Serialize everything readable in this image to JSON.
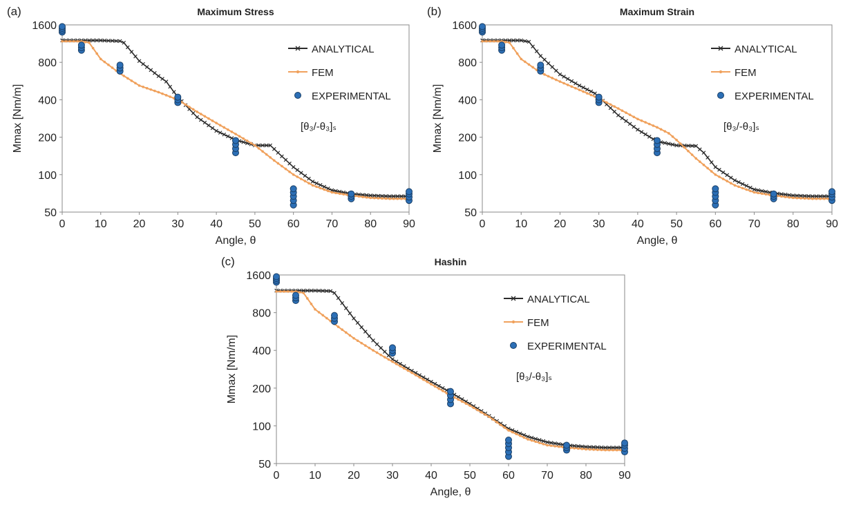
{
  "chart_data": [
    {
      "panel_label": "(a)",
      "type": "line",
      "title": "Maximum Stress",
      "xlabel": "Angle, θ",
      "ylabel": "Mmax [Nm/m]",
      "xlim": [
        0,
        90
      ],
      "xticks": [
        0,
        10,
        20,
        30,
        40,
        50,
        60,
        70,
        80,
        90
      ],
      "ylim": [
        50,
        1600
      ],
      "yscale": "log2",
      "yticks": [
        50,
        100,
        200,
        400,
        800,
        1600
      ],
      "grid": false,
      "legend_position": "top-right",
      "annotation": {
        "text": "[θ₃/-θ₃]ₛ"
      },
      "series": [
        {
          "name": "ANALYTICAL",
          "color": "#2b2b2b",
          "marker": "x",
          "points": [
            [
              0,
              1200
            ],
            [
              5,
              1200
            ],
            [
              10,
              1200
            ],
            [
              15,
              1185
            ],
            [
              16,
              1150
            ],
            [
              20,
              820
            ],
            [
              25,
              620
            ],
            [
              27,
              560
            ],
            [
              30,
              420
            ],
            [
              35,
              290
            ],
            [
              40,
              225
            ],
            [
              45,
              190
            ],
            [
              50,
              172
            ],
            [
              54,
              172
            ],
            [
              56,
              150
            ],
            [
              60,
              115
            ],
            [
              65,
              88
            ],
            [
              70,
              75
            ],
            [
              75,
              70
            ],
            [
              80,
              68
            ],
            [
              85,
              67
            ],
            [
              90,
              67
            ]
          ]
        },
        {
          "name": "FEM",
          "color": "#f0a15c",
          "marker": "dot",
          "points": [
            [
              0,
              1180
            ],
            [
              5,
              1180
            ],
            [
              7,
              1150
            ],
            [
              10,
              850
            ],
            [
              15,
              650
            ],
            [
              20,
              520
            ],
            [
              25,
              460
            ],
            [
              30,
              400
            ],
            [
              35,
              320
            ],
            [
              40,
              260
            ],
            [
              45,
              212
            ],
            [
              50,
              172
            ],
            [
              55,
              130
            ],
            [
              60,
              100
            ],
            [
              65,
              82
            ],
            [
              70,
              72
            ],
            [
              75,
              68
            ],
            [
              80,
              65
            ],
            [
              85,
              64
            ],
            [
              90,
              64
            ]
          ]
        },
        {
          "name": "EXPERIMENTAL",
          "color": "#2c6fb6",
          "marker": "circle",
          "mode": "scatter",
          "points": [
            [
              0,
              1400
            ],
            [
              0,
              1450
            ],
            [
              0,
              1500
            ],
            [
              0,
              1550
            ],
            [
              5,
              1000
            ],
            [
              5,
              1050
            ],
            [
              5,
              1100
            ],
            [
              15,
              680
            ],
            [
              15,
              720
            ],
            [
              15,
              760
            ],
            [
              30,
              380
            ],
            [
              30,
              400
            ],
            [
              30,
              420
            ],
            [
              45,
              150
            ],
            [
              45,
              162
            ],
            [
              45,
              175
            ],
            [
              45,
              188
            ],
            [
              60,
              57
            ],
            [
              60,
              62
            ],
            [
              60,
              67
            ],
            [
              60,
              72
            ],
            [
              60,
              77
            ],
            [
              75,
              64
            ],
            [
              75,
              67
            ],
            [
              75,
              70
            ],
            [
              90,
              62
            ],
            [
              90,
              66
            ],
            [
              90,
              70
            ],
            [
              90,
              73
            ]
          ]
        }
      ]
    },
    {
      "panel_label": "(b)",
      "type": "line",
      "title": "Maximum Strain",
      "xlabel": "Angle, θ",
      "ylabel": "Mmax [Nm/m]",
      "xlim": [
        0,
        90
      ],
      "xticks": [
        0,
        10,
        20,
        30,
        40,
        50,
        60,
        70,
        80,
        90
      ],
      "ylim": [
        50,
        1600
      ],
      "yscale": "log2",
      "yticks": [
        50,
        100,
        200,
        400,
        800,
        1600
      ],
      "grid": false,
      "legend_position": "top-right",
      "annotation": {
        "text": "[θ₃/-θ₃]ₛ"
      },
      "series": [
        {
          "name": "ANALYTICAL",
          "color": "#2b2b2b",
          "marker": "x",
          "points": [
            [
              0,
              1200
            ],
            [
              5,
              1200
            ],
            [
              10,
              1200
            ],
            [
              12,
              1170
            ],
            [
              15,
              900
            ],
            [
              20,
              640
            ],
            [
              25,
              520
            ],
            [
              29,
              450
            ],
            [
              30,
              420
            ],
            [
              35,
              300
            ],
            [
              40,
              230
            ],
            [
              45,
              185
            ],
            [
              50,
              172
            ],
            [
              55,
              170
            ],
            [
              57,
              150
            ],
            [
              60,
              115
            ],
            [
              65,
              90
            ],
            [
              70,
              76
            ],
            [
              75,
              71
            ],
            [
              80,
              68
            ],
            [
              85,
              67
            ],
            [
              90,
              67
            ]
          ]
        },
        {
          "name": "FEM",
          "color": "#f0a15c",
          "marker": "dot",
          "points": [
            [
              0,
              1180
            ],
            [
              5,
              1180
            ],
            [
              7,
              1150
            ],
            [
              10,
              850
            ],
            [
              15,
              660
            ],
            [
              20,
              560
            ],
            [
              25,
              480
            ],
            [
              30,
              410
            ],
            [
              35,
              340
            ],
            [
              40,
              280
            ],
            [
              45,
              240
            ],
            [
              48,
              215
            ],
            [
              50,
              190
            ],
            [
              55,
              135
            ],
            [
              60,
              100
            ],
            [
              65,
              82
            ],
            [
              70,
              72
            ],
            [
              75,
              68
            ],
            [
              80,
              65
            ],
            [
              85,
              64
            ],
            [
              90,
              64
            ]
          ]
        },
        {
          "name": "EXPERIMENTAL",
          "color": "#2c6fb6",
          "marker": "circle",
          "mode": "scatter",
          "points": [
            [
              0,
              1400
            ],
            [
              0,
              1450
            ],
            [
              0,
              1500
            ],
            [
              0,
              1550
            ],
            [
              5,
              1000
            ],
            [
              5,
              1050
            ],
            [
              5,
              1100
            ],
            [
              15,
              680
            ],
            [
              15,
              720
            ],
            [
              15,
              760
            ],
            [
              30,
              380
            ],
            [
              30,
              400
            ],
            [
              30,
              420
            ],
            [
              45,
              150
            ],
            [
              45,
              162
            ],
            [
              45,
              175
            ],
            [
              45,
              188
            ],
            [
              60,
              57
            ],
            [
              60,
              62
            ],
            [
              60,
              67
            ],
            [
              60,
              72
            ],
            [
              60,
              77
            ],
            [
              75,
              64
            ],
            [
              75,
              67
            ],
            [
              75,
              70
            ],
            [
              90,
              62
            ],
            [
              90,
              66
            ],
            [
              90,
              70
            ],
            [
              90,
              73
            ]
          ]
        }
      ]
    },
    {
      "panel_label": "(c)",
      "type": "line",
      "title": "Hashin",
      "xlabel": "Angle, θ",
      "ylabel": "Mmax [Nm/m]",
      "xlim": [
        0,
        90
      ],
      "xticks": [
        0,
        10,
        20,
        30,
        40,
        50,
        60,
        70,
        80,
        90
      ],
      "ylim": [
        50,
        1600
      ],
      "yscale": "log2",
      "yticks": [
        50,
        100,
        200,
        400,
        800,
        1600
      ],
      "grid": false,
      "legend_position": "top-right",
      "annotation": {
        "text": "[θ₃/-θ₃]ₛ"
      },
      "series": [
        {
          "name": "ANALYTICAL",
          "color": "#2b2b2b",
          "marker": "x",
          "points": [
            [
              0,
              1200
            ],
            [
              5,
              1200
            ],
            [
              10,
              1200
            ],
            [
              14,
              1190
            ],
            [
              15,
              1150
            ],
            [
              20,
              720
            ],
            [
              25,
              480
            ],
            [
              30,
              340
            ],
            [
              35,
              275
            ],
            [
              40,
              225
            ],
            [
              45,
              185
            ],
            [
              50,
              150
            ],
            [
              55,
              120
            ],
            [
              60,
              95
            ],
            [
              65,
              82
            ],
            [
              70,
              74
            ],
            [
              75,
              70
            ],
            [
              80,
              68
            ],
            [
              85,
              67
            ],
            [
              90,
              67
            ]
          ]
        },
        {
          "name": "FEM",
          "color": "#f0a15c",
          "marker": "dot",
          "points": [
            [
              0,
              1180
            ],
            [
              5,
              1180
            ],
            [
              7,
              1150
            ],
            [
              10,
              850
            ],
            [
              15,
              650
            ],
            [
              20,
              500
            ],
            [
              25,
              400
            ],
            [
              30,
              325
            ],
            [
              35,
              265
            ],
            [
              40,
              215
            ],
            [
              45,
              175
            ],
            [
              50,
              145
            ],
            [
              55,
              118
            ],
            [
              60,
              92
            ],
            [
              65,
              78
            ],
            [
              70,
              70
            ],
            [
              75,
              67
            ],
            [
              80,
              65
            ],
            [
              85,
              64
            ],
            [
              90,
              64
            ]
          ]
        },
        {
          "name": "EXPERIMENTAL",
          "color": "#2c6fb6",
          "marker": "circle",
          "mode": "scatter",
          "points": [
            [
              0,
              1400
            ],
            [
              0,
              1450
            ],
            [
              0,
              1500
            ],
            [
              0,
              1550
            ],
            [
              5,
              1000
            ],
            [
              5,
              1050
            ],
            [
              5,
              1100
            ],
            [
              15,
              680
            ],
            [
              15,
              720
            ],
            [
              15,
              760
            ],
            [
              30,
              380
            ],
            [
              30,
              400
            ],
            [
              30,
              420
            ],
            [
              45,
              150
            ],
            [
              45,
              162
            ],
            [
              45,
              175
            ],
            [
              45,
              188
            ],
            [
              60,
              57
            ],
            [
              60,
              62
            ],
            [
              60,
              67
            ],
            [
              60,
              72
            ],
            [
              60,
              77
            ],
            [
              75,
              64
            ],
            [
              75,
              67
            ],
            [
              75,
              70
            ],
            [
              90,
              62
            ],
            [
              90,
              66
            ],
            [
              90,
              70
            ],
            [
              90,
              73
            ]
          ]
        }
      ]
    }
  ]
}
